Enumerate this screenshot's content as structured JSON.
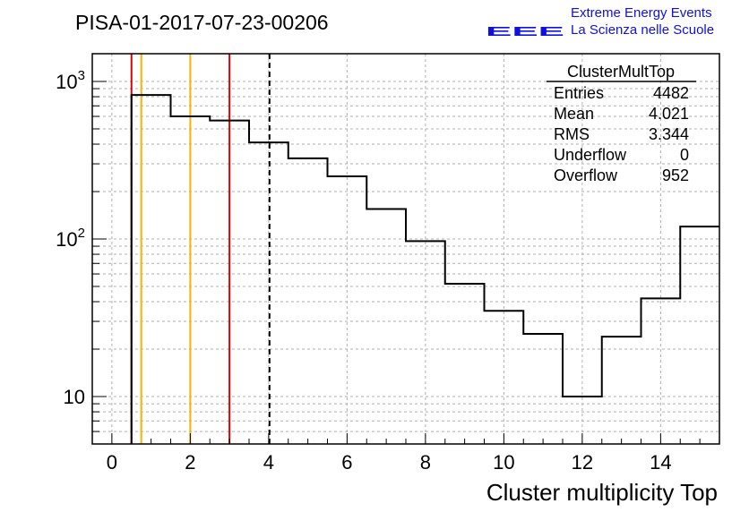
{
  "run_title": "PISA-01-2017-07-23-00206",
  "logo": {
    "mark": "EEE",
    "line1": "Extreme Energy Events",
    "line2": "La Scienza nelle Scuole",
    "color": "#1010e0"
  },
  "stats": {
    "title": "ClusterMultTop",
    "rows": [
      {
        "label": "Entries",
        "value": "4482"
      },
      {
        "label": "Mean",
        "value": "4.021"
      },
      {
        "label": "RMS",
        "value": "3.344"
      },
      {
        "label": "Underflow",
        "value": "0"
      },
      {
        "label": "Overflow",
        "value": "952"
      }
    ]
  },
  "chart_data": {
    "type": "histogram",
    "xlabel": "Cluster multiplicity Top",
    "ylabel": "",
    "xlim": [
      -0.5,
      15.5
    ],
    "ylim": [
      5,
      1500
    ],
    "log_y": true,
    "grid": true,
    "x_ticks": [
      "0",
      "2",
      "4",
      "6",
      "8",
      "10",
      "12",
      "14"
    ],
    "y_ticks": [
      "10",
      "10^2",
      "10^3"
    ],
    "bin_edges": [
      0.5,
      1.5,
      2.5,
      3.5,
      4.5,
      5.5,
      6.5,
      7.5,
      8.5,
      9.5,
      10.5,
      11.5,
      12.5,
      13.5,
      14.5,
      15.5
    ],
    "values": [
      820,
      600,
      565,
      410,
      325,
      250,
      155,
      97,
      52,
      35,
      25,
      10,
      24,
      42,
      120
    ],
    "vertical_lines": [
      {
        "x": 0.5,
        "color": "#e00000",
        "style": "solid"
      },
      {
        "x": 0.75,
        "color": "#ffb000",
        "style": "solid"
      },
      {
        "x": 2.0,
        "color": "#ffb000",
        "style": "solid"
      },
      {
        "x": 3.0,
        "color": "#e00000",
        "style": "solid"
      },
      {
        "x": 4.021,
        "color": "#000000",
        "style": "dashed"
      }
    ]
  }
}
